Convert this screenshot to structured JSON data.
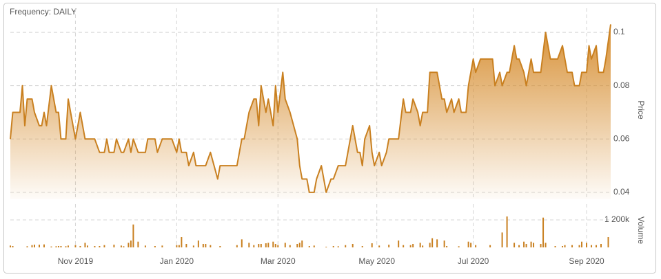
{
  "chart_data": [
    {
      "type": "area",
      "title": "Frequency: DAILY",
      "y_label": "Price",
      "color": "#c98020",
      "grid": true,
      "xlim": [
        0,
        249
      ],
      "xticks": [
        {
          "value": 27,
          "label": "Nov 2019"
        },
        {
          "value": 69,
          "label": "Jan 2020"
        },
        {
          "value": 111,
          "label": "Mar 2020"
        },
        {
          "value": 152,
          "label": "May 2020"
        },
        {
          "value": 192,
          "label": "Jul 2020"
        },
        {
          "value": 239,
          "label": "Sep 2020"
        }
      ],
      "ylim": [
        0.0374,
        0.1044
      ],
      "yticks": [
        0.04,
        0.06,
        0.08,
        0.1
      ],
      "x": [
        0,
        1,
        4,
        5,
        6,
        7,
        9,
        10,
        12,
        13,
        14,
        15,
        17,
        19,
        20,
        21,
        23,
        24,
        25,
        27,
        29,
        31,
        35,
        37,
        39,
        40,
        41,
        43,
        44,
        46,
        47,
        49,
        50,
        51,
        53,
        56,
        57,
        60,
        61,
        63,
        67,
        69,
        70,
        71,
        73,
        74,
        76,
        77,
        81,
        83,
        86,
        87,
        94,
        96,
        97,
        99,
        101,
        102,
        103,
        104,
        106,
        107,
        109,
        110,
        111,
        113,
        114,
        116,
        119,
        120,
        121,
        123,
        124,
        126,
        127,
        129,
        130,
        131,
        133,
        134,
        136,
        139,
        140,
        142,
        144,
        145,
        146,
        147,
        149,
        150,
        151,
        153,
        154,
        156,
        157,
        161,
        163,
        164,
        166,
        167,
        169,
        170,
        171,
        173,
        174,
        177,
        179,
        180,
        181,
        183,
        184,
        186,
        187,
        189,
        190,
        191,
        192,
        193,
        195,
        200,
        201,
        203,
        204,
        206,
        207,
        209,
        210,
        211,
        213,
        214,
        216,
        217,
        220,
        222,
        223,
        224,
        226,
        227,
        229,
        230,
        231,
        233,
        234,
        236,
        237,
        239,
        240,
        241,
        243,
        244,
        246,
        247,
        249
      ],
      "values": [
        0.06,
        0.07,
        0.07,
        0.08,
        0.065,
        0.075,
        0.075,
        0.07,
        0.065,
        0.065,
        0.07,
        0.065,
        0.08,
        0.07,
        0.07,
        0.06,
        0.06,
        0.075,
        0.07,
        0.06,
        0.07,
        0.06,
        0.06,
        0.055,
        0.055,
        0.06,
        0.055,
        0.055,
        0.06,
        0.055,
        0.055,
        0.06,
        0.055,
        0.06,
        0.055,
        0.055,
        0.06,
        0.06,
        0.055,
        0.06,
        0.06,
        0.055,
        0.06,
        0.055,
        0.055,
        0.05,
        0.055,
        0.05,
        0.05,
        0.055,
        0.045,
        0.05,
        0.05,
        0.06,
        0.06,
        0.07,
        0.075,
        0.075,
        0.065,
        0.08,
        0.07,
        0.075,
        0.065,
        0.08,
        0.07,
        0.085,
        0.075,
        0.07,
        0.06,
        0.05,
        0.045,
        0.045,
        0.04,
        0.04,
        0.045,
        0.05,
        0.045,
        0.04,
        0.045,
        0.045,
        0.05,
        0.05,
        0.055,
        0.065,
        0.055,
        0.055,
        0.05,
        0.06,
        0.065,
        0.055,
        0.05,
        0.055,
        0.05,
        0.055,
        0.06,
        0.06,
        0.075,
        0.07,
        0.07,
        0.075,
        0.07,
        0.065,
        0.07,
        0.07,
        0.085,
        0.085,
        0.075,
        0.075,
        0.07,
        0.075,
        0.07,
        0.075,
        0.07,
        0.07,
        0.08,
        0.085,
        0.09,
        0.085,
        0.09,
        0.09,
        0.08,
        0.085,
        0.08,
        0.085,
        0.085,
        0.095,
        0.09,
        0.09,
        0.085,
        0.08,
        0.09,
        0.085,
        0.085,
        0.1,
        0.095,
        0.09,
        0.09,
        0.09,
        0.095,
        0.09,
        0.085,
        0.085,
        0.08,
        0.08,
        0.085,
        0.085,
        0.095,
        0.09,
        0.095,
        0.085,
        0.085,
        0.09,
        0.103
      ]
    },
    {
      "type": "bar",
      "y_label": "Volume",
      "color": "#c98020",
      "grid": true,
      "xlim": [
        0,
        249
      ],
      "ylim": [
        0,
        1650000
      ],
      "yticks": [
        {
          "value": 1200000,
          "label": "1 200k"
        }
      ],
      "x": [
        0,
        1,
        7,
        9,
        10,
        12,
        14,
        17,
        19,
        20,
        21,
        23,
        24,
        27,
        29,
        31,
        32,
        35,
        37,
        39,
        43,
        46,
        47,
        49,
        50,
        51,
        53,
        56,
        60,
        63,
        69,
        70,
        71,
        73,
        76,
        78,
        80,
        81,
        83,
        87,
        94,
        96,
        99,
        101,
        103,
        104,
        106,
        107,
        109,
        110,
        111,
        114,
        116,
        119,
        120,
        121,
        124,
        126,
        131,
        134,
        136,
        139,
        142,
        146,
        150,
        153,
        157,
        161,
        163,
        166,
        167,
        170,
        171,
        174,
        175,
        177,
        180,
        181,
        186,
        190,
        191,
        193,
        199,
        204,
        206,
        209,
        211,
        213,
        214,
        216,
        217,
        220,
        221,
        222,
        226,
        229,
        230,
        233,
        236,
        237,
        239,
        241,
        243,
        245,
        248
      ],
      "values": [
        80000,
        60000,
        50000,
        100000,
        120000,
        120000,
        130000,
        40000,
        50000,
        60000,
        60000,
        50000,
        80000,
        100000,
        60000,
        200000,
        80000,
        60000,
        60000,
        100000,
        120000,
        80000,
        50000,
        200000,
        300000,
        1000000,
        250000,
        80000,
        60000,
        80000,
        100000,
        100000,
        450000,
        150000,
        80000,
        300000,
        150000,
        150000,
        100000,
        60000,
        100000,
        350000,
        200000,
        100000,
        150000,
        150000,
        180000,
        200000,
        250000,
        150000,
        100000,
        200000,
        100000,
        150000,
        200000,
        300000,
        60000,
        80000,
        30000,
        60000,
        50000,
        100000,
        150000,
        60000,
        180000,
        80000,
        120000,
        300000,
        100000,
        100000,
        150000,
        200000,
        80000,
        200000,
        400000,
        350000,
        300000,
        60000,
        50000,
        250000,
        200000,
        100000,
        100000,
        650000,
        1350000,
        200000,
        100000,
        250000,
        150000,
        250000,
        200000,
        150000,
        1300000,
        200000,
        60000,
        60000,
        100000,
        100000,
        100000,
        250000,
        200000,
        100000,
        100000,
        150000,
        450000
      ]
    }
  ]
}
